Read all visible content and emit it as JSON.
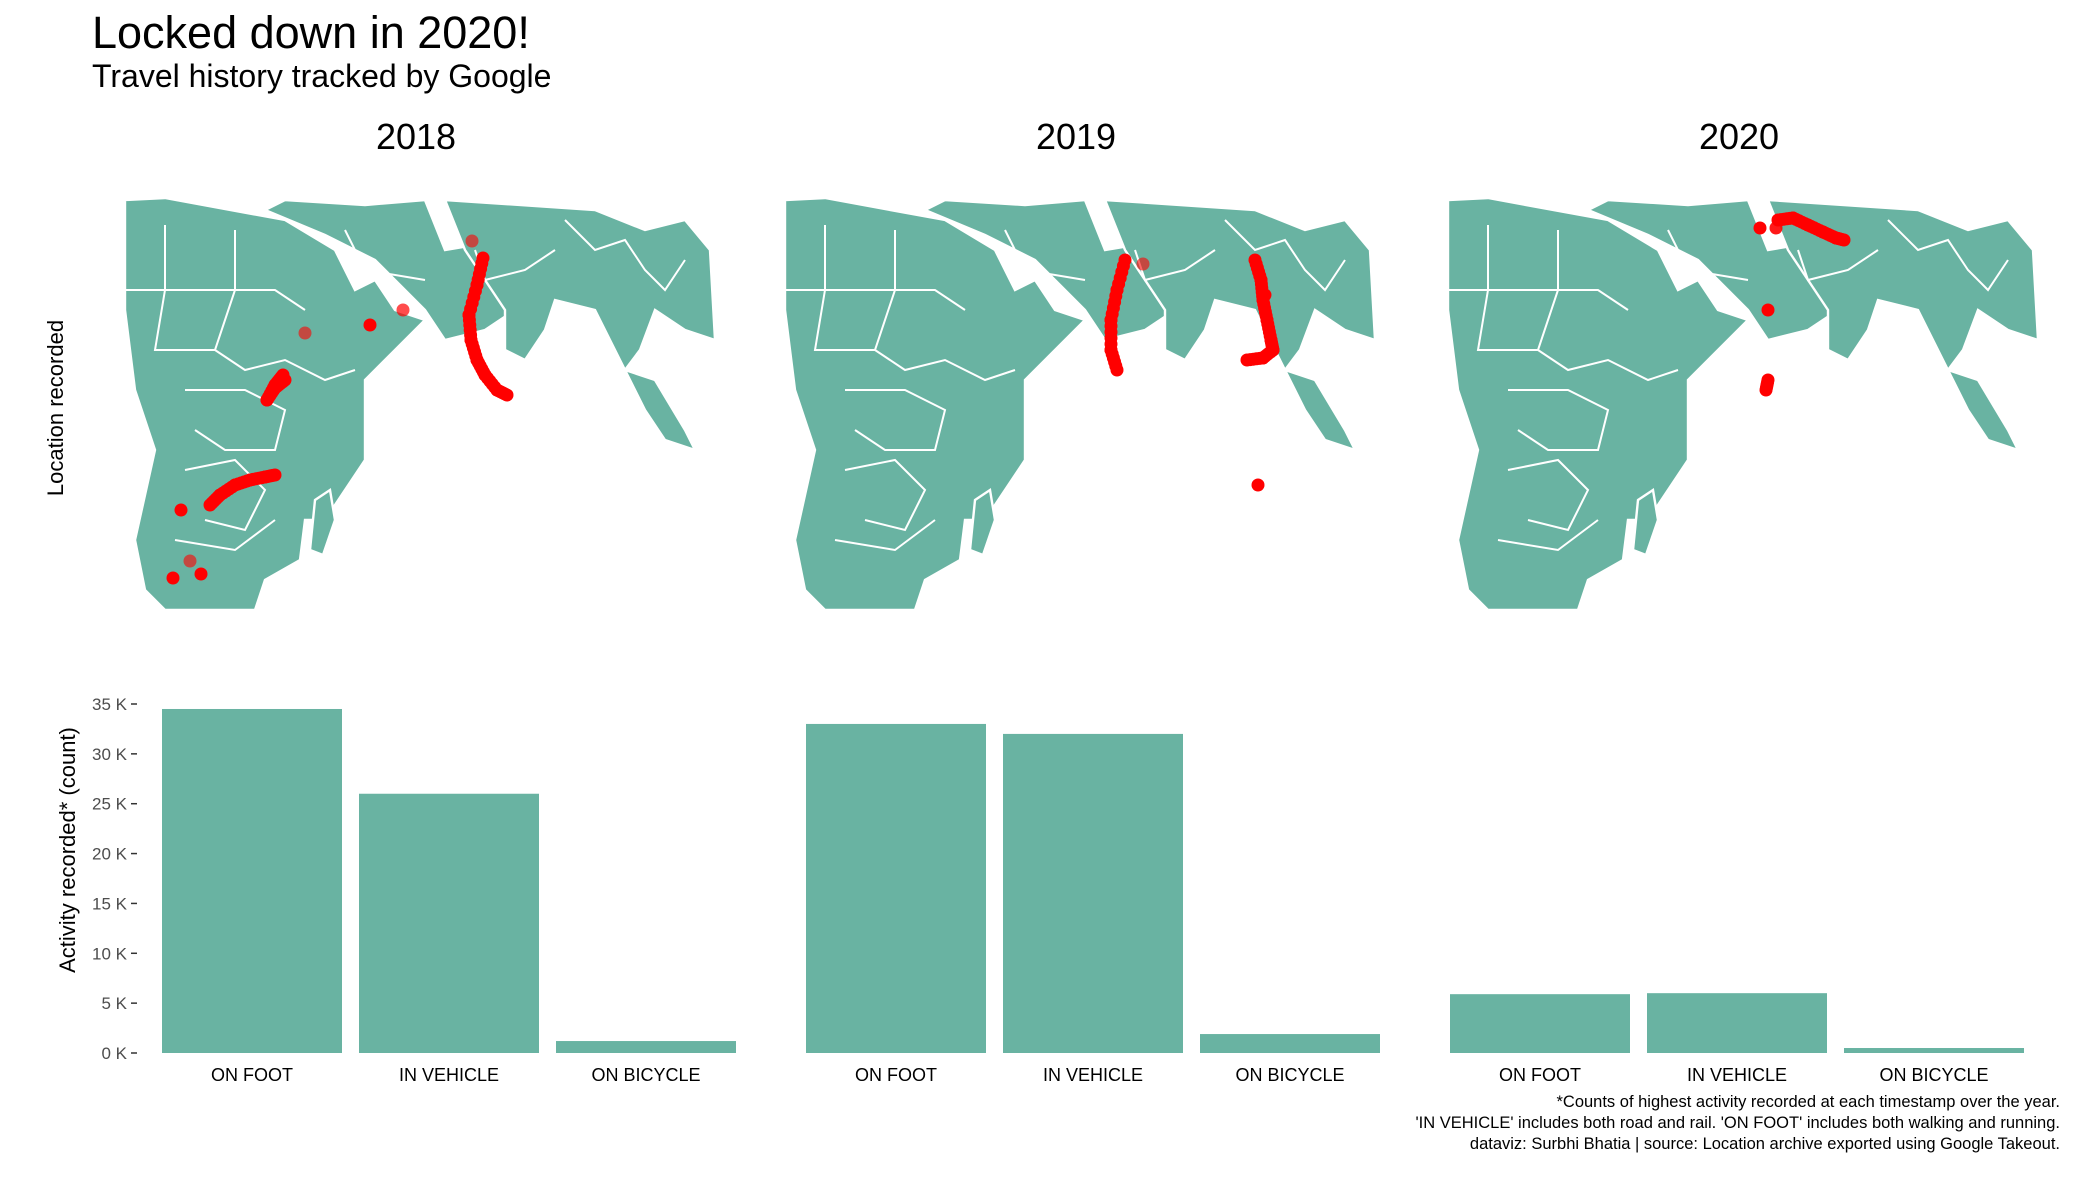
{
  "header": {
    "title": "Locked down in 2020!",
    "subtitle": "Travel history tracked by Google"
  },
  "facets": [
    "2018",
    "2019",
    "2020"
  ],
  "map_panel": {
    "ylabel": "Location recorded",
    "land_color": "#69B3A2",
    "border_color": "#FFFFFF",
    "point_color": "#FF0000"
  },
  "chart_data": {
    "type": "bar",
    "ylabel": "Activity recorded* (count)",
    "categories": [
      "ON FOOT",
      "IN VEHICLE",
      "ON BICYCLE"
    ],
    "facets": [
      {
        "name": "2018",
        "values": [
          34500,
          26000,
          1200
        ]
      },
      {
        "name": "2019",
        "values": [
          33000,
          32000,
          1900
        ]
      },
      {
        "name": "2020",
        "values": [
          5900,
          6000,
          500
        ]
      }
    ],
    "ylim": [
      0,
      35000
    ],
    "yticks": [
      0,
      5000,
      10000,
      15000,
      20000,
      25000,
      30000,
      35000
    ],
    "yticklabels": [
      "0 K",
      "5 K",
      "10 K",
      "15 K",
      "20 K",
      "25 K",
      "30 K",
      "35 K"
    ],
    "bar_color": "#69B3A2",
    "grid": false
  },
  "caption": {
    "line1": "*Counts of highest activity recorded at each timestamp over the year.",
    "line2": "'IN VEHICLE' includes both road and rail. 'ON FOOT' includes both walking and running.",
    "line3": "dataviz: Surbhi Bhatia  | source: Location archive exported using Google Takeout."
  }
}
